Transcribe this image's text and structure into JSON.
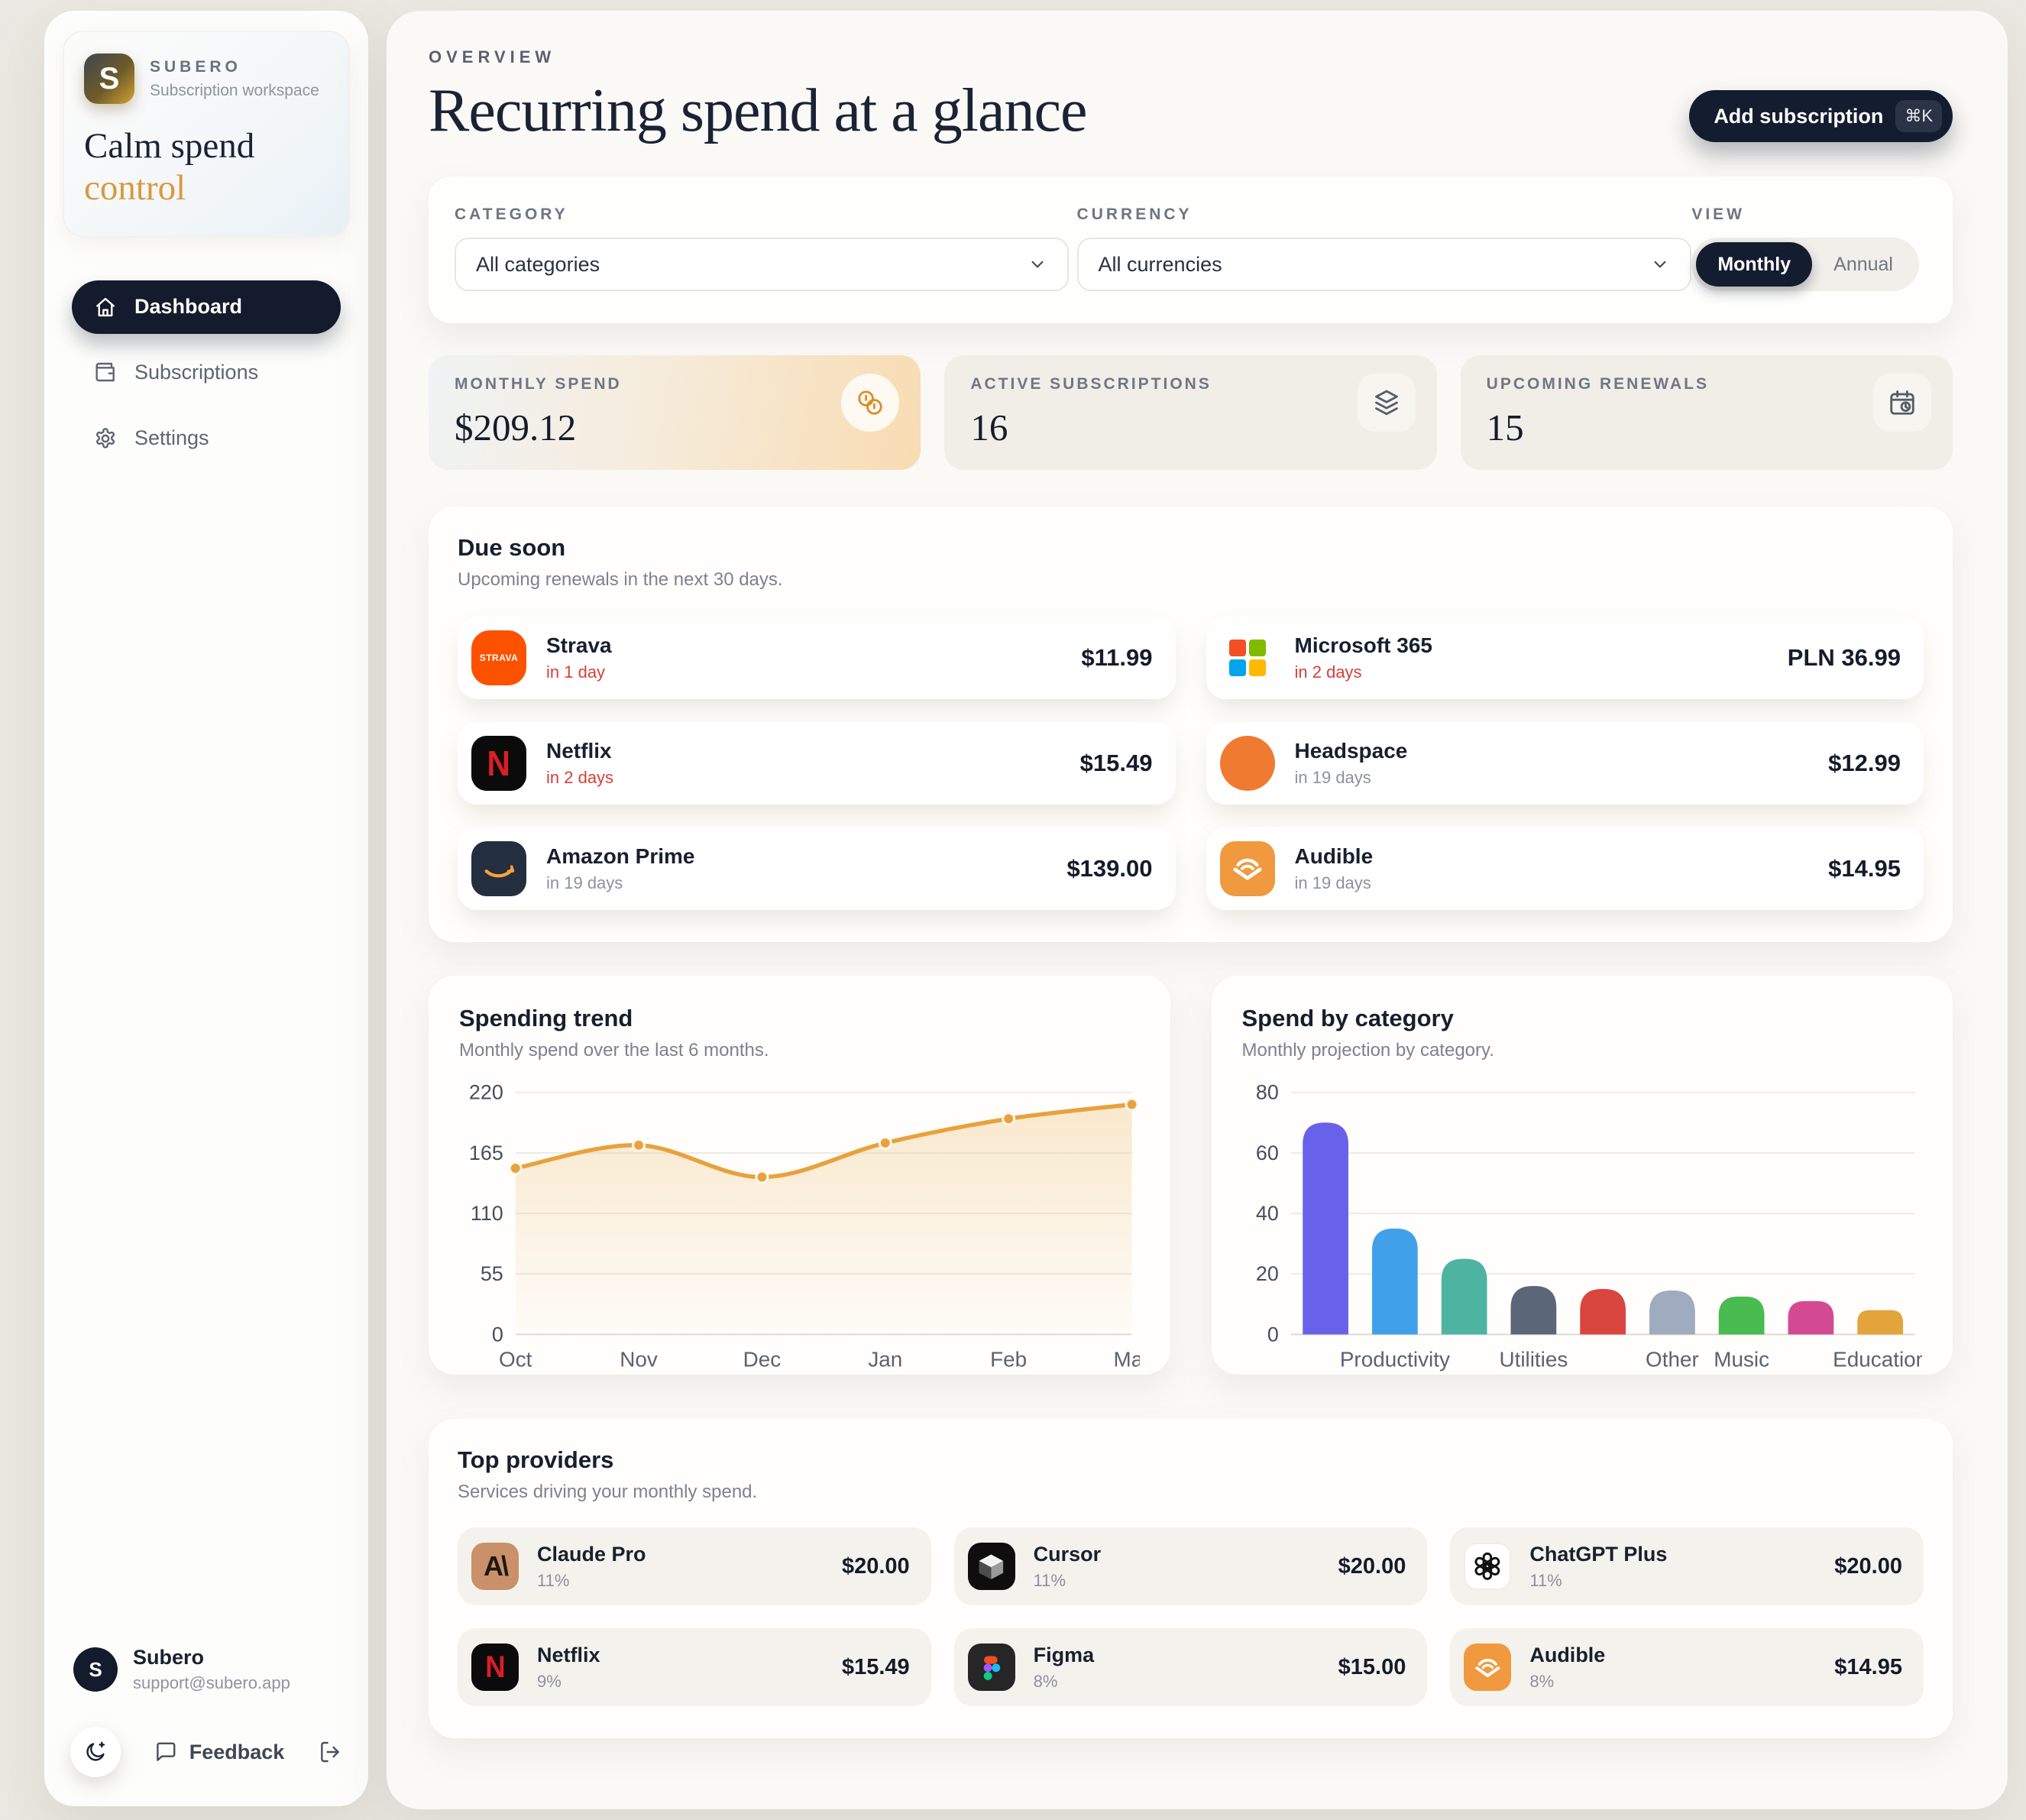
{
  "app": {
    "brand": "SUBERO",
    "brand_sub": "Subscription workspace",
    "logo_letter": "S",
    "tagline_line1": "Calm spend",
    "tagline_line2": "control",
    "accent_color": "#e8a23c",
    "navy_color": "#141c2f",
    "urgent_color": "#d6403a"
  },
  "sidebar": {
    "nav": [
      {
        "label": "Dashboard",
        "icon": "home-icon",
        "active": true
      },
      {
        "label": "Subscriptions",
        "icon": "wallet-icon",
        "active": false
      },
      {
        "label": "Settings",
        "icon": "gear-icon",
        "active": false
      }
    ],
    "user": {
      "initial": "S",
      "name": "Subero",
      "email": "support@subero.app"
    },
    "footer": {
      "feedback_label": "Feedback"
    }
  },
  "header": {
    "eyebrow": "OVERVIEW",
    "title": "Recurring spend at a glance",
    "add_button": {
      "label": "Add subscription",
      "shortcut": "⌘K"
    }
  },
  "filters": {
    "category": {
      "label": "CATEGORY",
      "value": "All categories"
    },
    "currency": {
      "label": "CURRENCY",
      "value": "All currencies"
    },
    "view": {
      "label": "VIEW",
      "options": [
        "Monthly",
        "Annual"
      ],
      "selected": "Monthly"
    }
  },
  "stats": [
    {
      "label": "MONTHLY SPEND",
      "value": "$209.12",
      "icon": "coins-icon",
      "highlight": true
    },
    {
      "label": "ACTIVE SUBSCRIPTIONS",
      "value": "16",
      "icon": "layers-icon",
      "highlight": false
    },
    {
      "label": "UPCOMING RENEWALS",
      "value": "15",
      "icon": "calendar-clock-icon",
      "highlight": false
    }
  ],
  "due_soon": {
    "title": "Due soon",
    "subtitle": "Upcoming renewals in the next 30 days.",
    "items": [
      {
        "name": "Strava",
        "due": "in 1 day",
        "urgent": true,
        "price": "$11.99",
        "icon": "strava-icon"
      },
      {
        "name": "Microsoft 365",
        "due": "in 2 days",
        "urgent": true,
        "price": "PLN 36.99",
        "icon": "microsoft-icon"
      },
      {
        "name": "Netflix",
        "due": "in 2 days",
        "urgent": true,
        "price": "$15.49",
        "icon": "netflix-icon"
      },
      {
        "name": "Headspace",
        "due": "in 19 days",
        "urgent": false,
        "price": "$12.99",
        "icon": "headspace-icon"
      },
      {
        "name": "Amazon Prime",
        "due": "in 19 days",
        "urgent": false,
        "price": "$139.00",
        "icon": "amazon-icon"
      },
      {
        "name": "Audible",
        "due": "in 19 days",
        "urgent": false,
        "price": "$14.95",
        "icon": "audible-icon"
      }
    ]
  },
  "chart_data": [
    {
      "type": "line",
      "title": "Spending trend",
      "subtitle": "Monthly spend over the last 6 months.",
      "x": [
        "Oct",
        "Nov",
        "Dec",
        "Jan",
        "Feb",
        "Mar"
      ],
      "values": [
        151,
        172,
        143,
        174,
        196,
        209
      ],
      "ylim": [
        0,
        220
      ],
      "yticks": [
        0,
        55,
        110,
        165,
        220
      ],
      "line_color": "#e8a23c",
      "area_fill": "#f0c98a",
      "grid": true,
      "legend": "none"
    },
    {
      "type": "bar",
      "title": "Spend by category",
      "subtitle": "Monthly projection by category.",
      "categories": [
        "",
        "Productivity",
        "",
        "Utilities",
        "",
        "Other",
        "Music",
        "",
        "Education"
      ],
      "values": [
        70,
        35,
        25,
        16,
        15,
        14.5,
        12.5,
        11,
        8
      ],
      "colors": [
        "#6862ea",
        "#41a1e8",
        "#4fb3a1",
        "#5b6679",
        "#d9463f",
        "#9fabbe",
        "#49bb51",
        "#d44a92",
        "#e3a43c"
      ],
      "ylim": [
        0,
        80
      ],
      "yticks": [
        0,
        20,
        40,
        60,
        80
      ],
      "grid": true,
      "legend": "none"
    }
  ],
  "top_providers": {
    "title": "Top providers",
    "subtitle": "Services driving your monthly spend.",
    "items": [
      {
        "name": "Claude Pro",
        "share": "11%",
        "price": "$20.00",
        "icon": "claude-icon"
      },
      {
        "name": "Cursor",
        "share": "11%",
        "price": "$20.00",
        "icon": "cursor-icon"
      },
      {
        "name": "ChatGPT Plus",
        "share": "11%",
        "price": "$20.00",
        "icon": "chatgpt-icon"
      },
      {
        "name": "Netflix",
        "share": "9%",
        "price": "$15.49",
        "icon": "netflix-icon"
      },
      {
        "name": "Figma",
        "share": "8%",
        "price": "$15.00",
        "icon": "figma-icon"
      },
      {
        "name": "Audible",
        "share": "8%",
        "price": "$14.95",
        "icon": "audible-icon"
      }
    ]
  }
}
